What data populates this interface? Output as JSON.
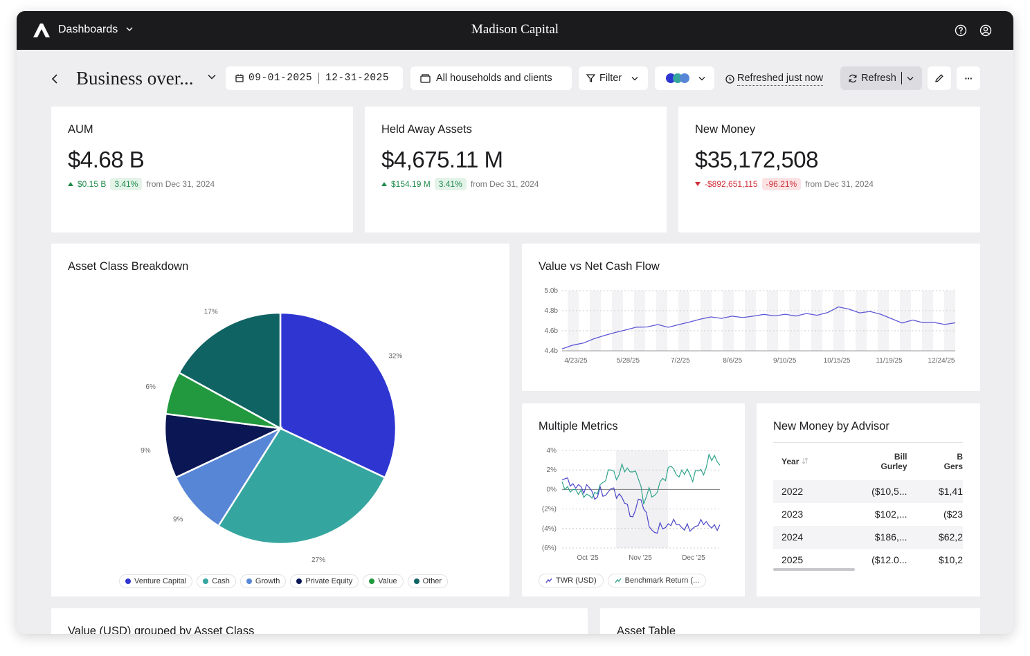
{
  "app": {
    "nav_label": "Dashboards",
    "brand": "Madison Capital"
  },
  "toolbar": {
    "page_title": "Business over...",
    "date_start": "09-01-2025",
    "date_end": "12-31-2025",
    "scope": "All households and clients",
    "filter_label": "Filter",
    "refreshed_label": "Refreshed just now",
    "refresh_label": "Refresh",
    "more_label": "···"
  },
  "kpis": [
    {
      "title": "AUM",
      "value": "$4.68 B",
      "delta": "$0.15 B",
      "pct": "3.41%",
      "from": "from Dec 31, 2024",
      "direction": "up"
    },
    {
      "title": "Held Away Assets",
      "value": "$4,675.11 M",
      "delta": "$154.19 M",
      "pct": "3.41%",
      "from": "from Dec 31, 2024",
      "direction": "up"
    },
    {
      "title": "New Money",
      "value": "$35,172,508",
      "delta": "-$892,651,115",
      "pct": "-96.21%",
      "from": "from Dec 31, 2024",
      "direction": "down"
    }
  ],
  "asset_class": {
    "title": "Asset Class Breakdown",
    "chart_data": {
      "type": "pie",
      "labels": [
        "Venture Capital",
        "Cash",
        "Growth",
        "Private Equity",
        "Value",
        "Other"
      ],
      "values": [
        32,
        27,
        9,
        9,
        6,
        17
      ],
      "value_labels": [
        "32%",
        "27%",
        "9%",
        "9%",
        "6%",
        "17%"
      ],
      "colors": [
        "#2e35d1",
        "#35a69f",
        "#5886d6",
        "#0b1654",
        "#22993f",
        "#106363"
      ],
      "legend_position": "bottom"
    }
  },
  "value_cash": {
    "title": "Value vs Net Cash Flow",
    "chart_data": {
      "type": "line",
      "y_ticks": [
        "5.0b",
        "4.8b",
        "4.6b",
        "4.4b"
      ],
      "ylim": [
        4.4,
        5.0
      ],
      "x_ticks": [
        "4/23/25",
        "5/28/25",
        "7/2/25",
        "8/6/25",
        "9/10/25",
        "10/15/25",
        "11/19/25",
        "12/24/25"
      ],
      "series": [
        {
          "values": [
            4.42,
            4.45,
            4.47,
            4.52,
            4.56,
            4.59,
            4.61,
            4.63,
            4.63,
            4.66,
            4.64,
            4.67,
            4.69,
            4.71,
            4.73,
            4.72,
            4.75,
            4.74,
            4.75,
            4.76,
            4.74,
            4.76,
            4.75,
            4.78,
            4.76,
            4.78,
            4.83,
            4.81,
            4.78,
            4.8,
            4.77,
            4.72,
            4.67,
            4.7,
            4.68,
            4.69,
            4.67,
            4.68
          ]
        }
      ],
      "color": "#5b57d6",
      "grid": true
    }
  },
  "metrics": {
    "title": "Multiple Metrics",
    "chart_data": {
      "type": "line",
      "y_ticks": [
        "4%",
        "2%",
        "0%",
        "(2%)",
        "(4%)",
        "(6%)"
      ],
      "ylim": [
        -6,
        4
      ],
      "x_ticks": [
        "Oct '25",
        "Nov '25",
        "Dec '25"
      ],
      "series": [
        {
          "name": "TWR (USD)",
          "color": "#4b45c9",
          "values": [
            1.0,
            1.2,
            0.6,
            0.5,
            -0.4,
            0.2,
            -1.0,
            0.3,
            -0.6,
            0.1,
            -0.9,
            -0.8,
            -1.5,
            -2.8,
            -1.0,
            -2.0,
            -3.8,
            -4.4,
            -3.4,
            -3.9,
            -3.7,
            -3.6,
            -3.9,
            -3.5,
            -4.0,
            -3.7,
            -3.6,
            -3.7,
            -3.6,
            -3.6
          ]
        },
        {
          "name": "Benchmark Return (...",
          "color": "#2fa38c",
          "values": [
            0.8,
            0.3,
            0.0,
            -0.5,
            -0.8,
            -0.6,
            -0.3,
            0.5,
            0.9,
            2.0,
            1.0,
            2.6,
            2.2,
            1.8,
            1.1,
            -1.5,
            0.2,
            -0.6,
            0.8,
            0.9,
            2.4,
            1.5,
            2.0,
            2.1,
            0.8,
            1.9,
            1.5,
            3.6,
            3.5,
            2.5
          ]
        }
      ],
      "shaded_band": true
    }
  },
  "advisor": {
    "title": "New Money by Advisor",
    "columns": [
      "Year",
      "Bill Gurley",
      "B Gers"
    ],
    "col1_line1": "Bill",
    "col1_line2": "Gurley",
    "col2_line1": "B",
    "col2_line2": "Gers",
    "rows": [
      {
        "year": "2022",
        "c1": "($10,5...",
        "c1_neg": true,
        "c2": "$1,41",
        "c2_neg": false
      },
      {
        "year": "2023",
        "c1": "$102,...",
        "c1_neg": false,
        "c2": "($23",
        "c2_neg": true
      },
      {
        "year": "2024",
        "c1": "$186,...",
        "c1_neg": false,
        "c2": "$62,2",
        "c2_neg": false
      },
      {
        "year": "2025",
        "c1": "($12.0...",
        "c1_neg": true,
        "c2": "$10,2",
        "c2_neg": false
      }
    ]
  },
  "bottom": {
    "left_title": "Value (USD) grouped by Asset Class",
    "right_title": "Asset Table"
  }
}
